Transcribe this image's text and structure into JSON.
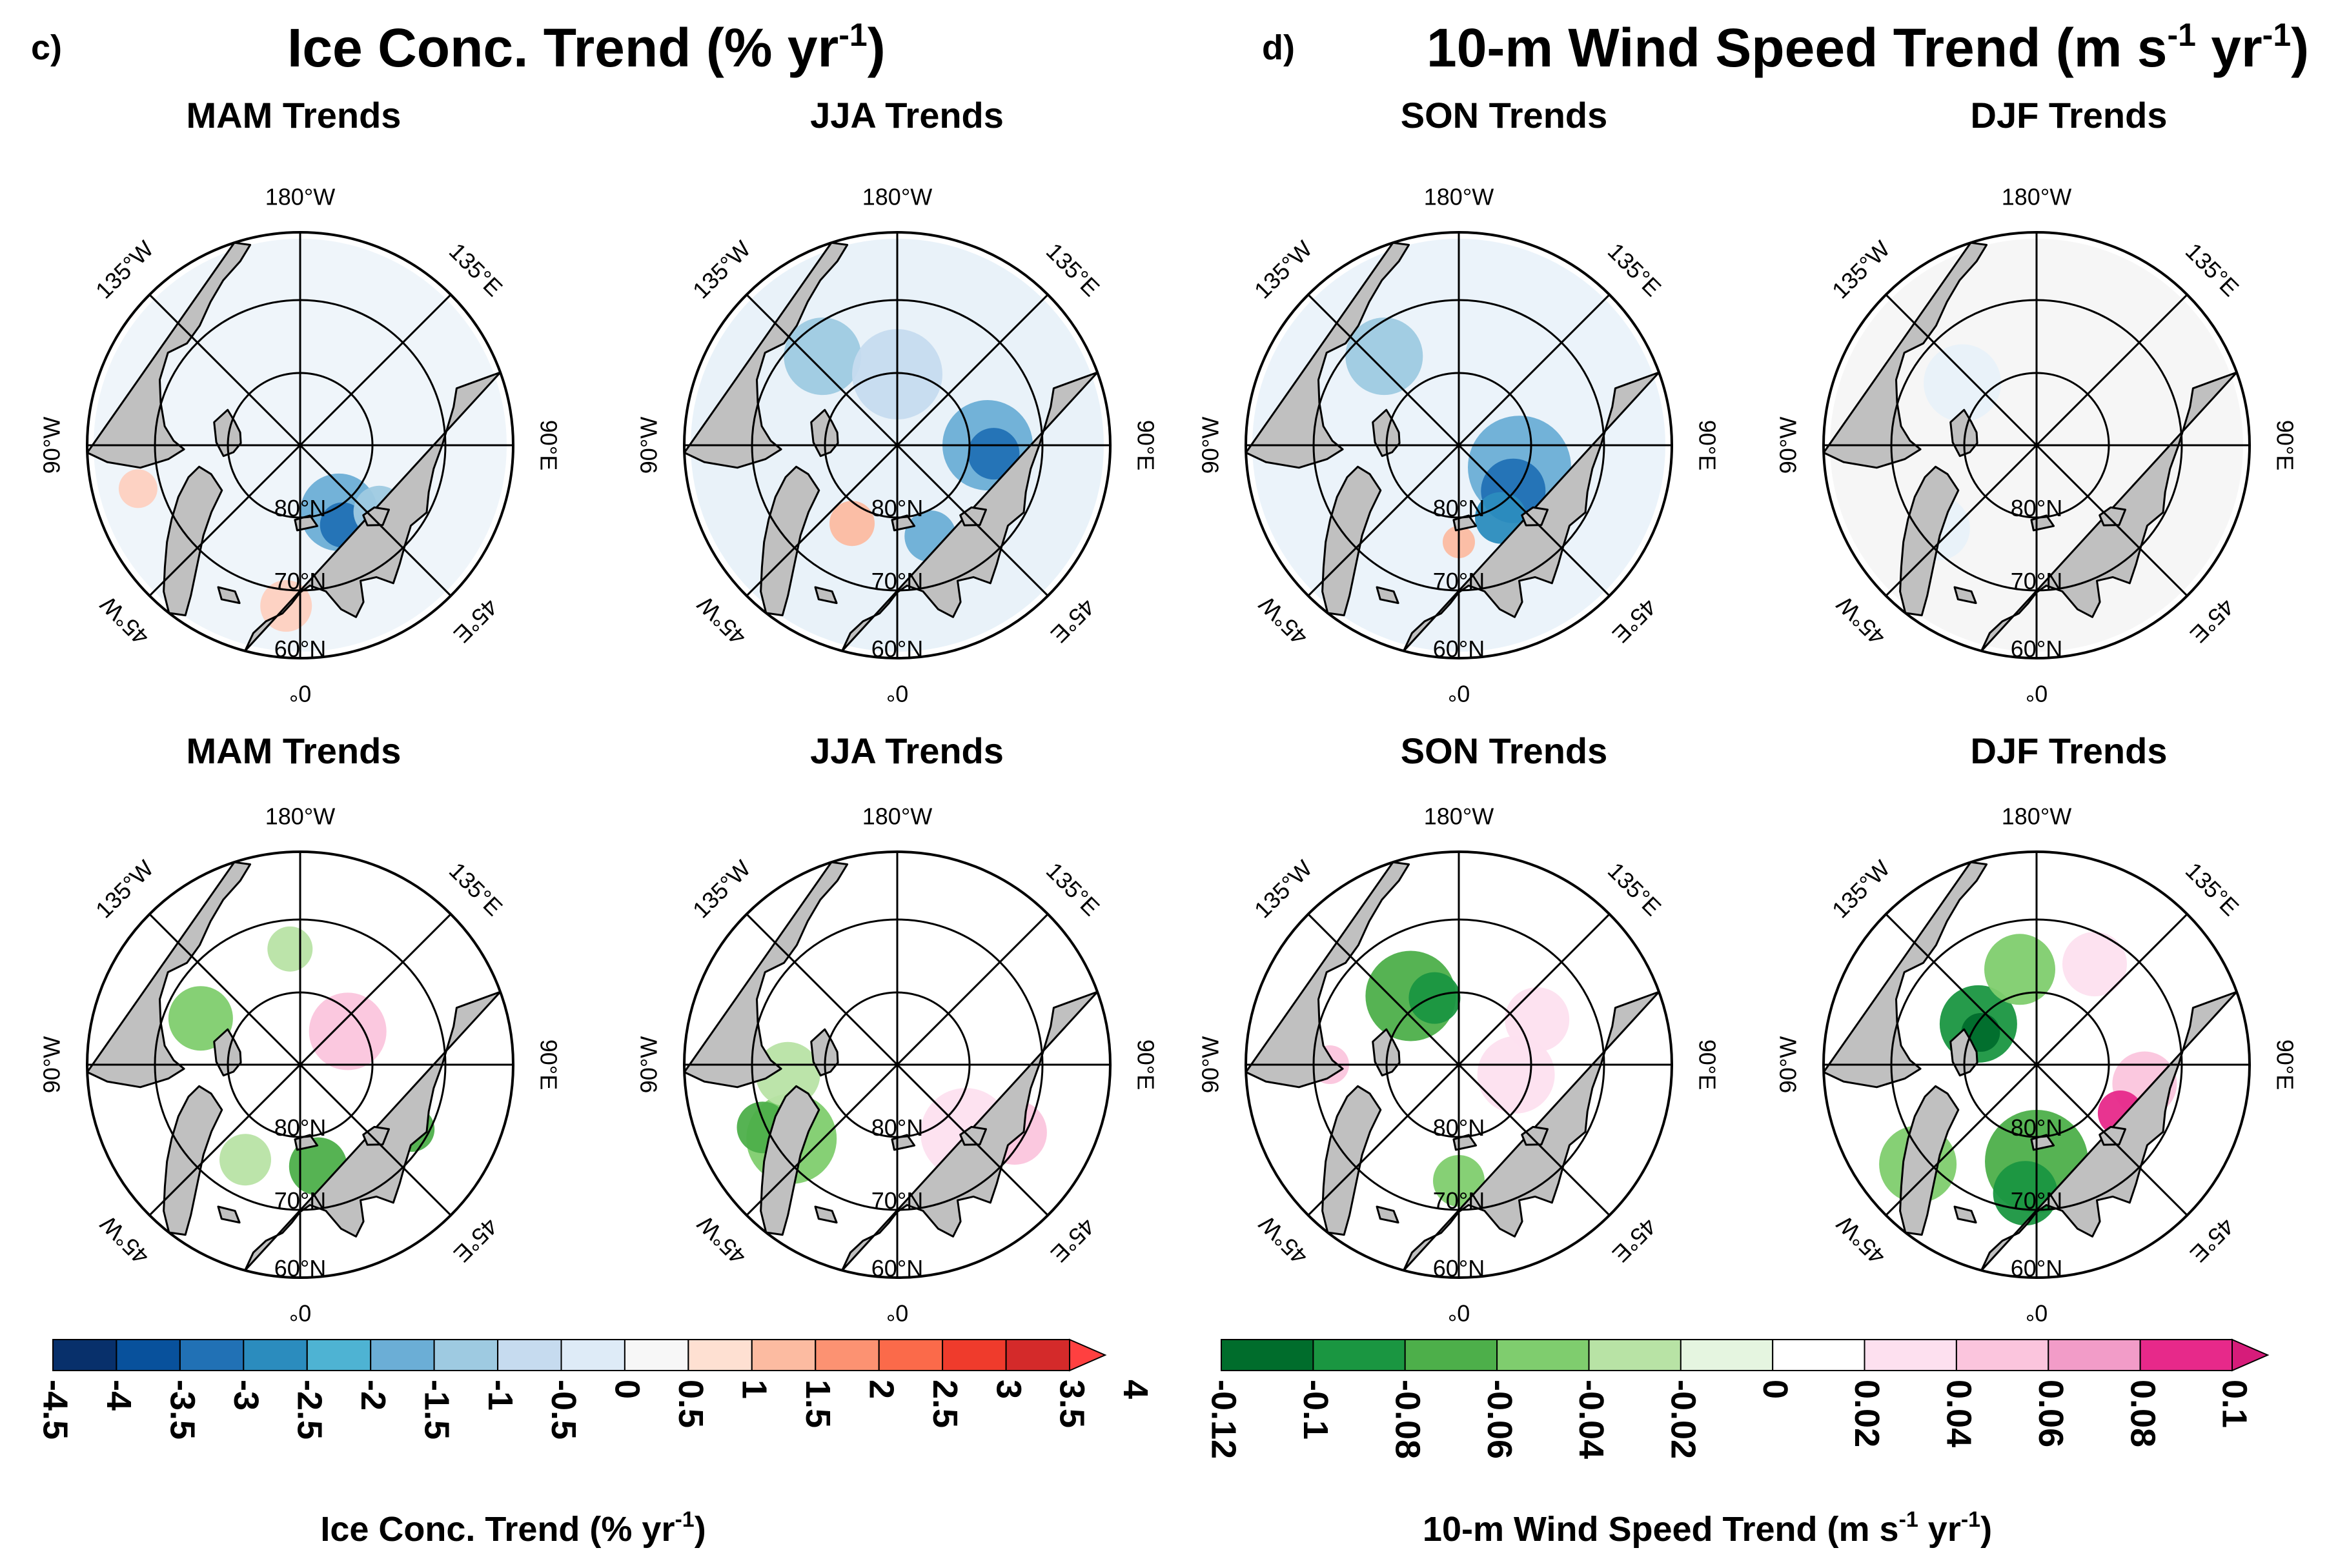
{
  "panels": {
    "c": {
      "letter": "c)",
      "title": "Ice Conc. Trend (% yr",
      "title_sup": "-1",
      "title_close": ")"
    },
    "d": {
      "letter": "d)",
      "title": "10-m Wind Speed Trend (m s",
      "title_sup1": "-1",
      "title_mid": " yr",
      "title_sup2": "-1",
      "title_close": ")"
    }
  },
  "map_labels": {
    "lon_top": "180°W",
    "lon_nw": "135°W",
    "lon_ne": "135°E",
    "lon_w": "90°W",
    "lon_e": "90°E",
    "lon_sw": "45°W",
    "lon_se": "45°E",
    "lon_bottom": "0°",
    "lat_80": "80°N",
    "lat_70": "70°N",
    "lat_60": "60°N"
  },
  "chart_data": [
    {
      "type": "heatmap",
      "title": "Ice Conc. Trend (% yr-1)",
      "projection": "north polar stereographic",
      "panels": [
        "MAM Trends",
        "JJA Trends",
        "SON Trends",
        "DJF Trends"
      ],
      "colorbar": {
        "label": "Ice Conc. Trend (% yr",
        "label_sup": "-1",
        "label_close": ")",
        "ticks": [
          "-4.5",
          "-4",
          "-3.5",
          "-3",
          "-2.5",
          "-2",
          "-1.5",
          "-1",
          "-0.5",
          "0",
          "0.5",
          "1",
          "1.5",
          "2",
          "2.5",
          "3",
          "3.5",
          "4"
        ],
        "colors": [
          "#08306b",
          "#08519c",
          "#2171b5",
          "#2b8cbe",
          "#4eb3d3",
          "#6baed6",
          "#9ecae1",
          "#c6dbef",
          "#deebf7",
          "#f7f7f7",
          "#fee0d2",
          "#fcbba1",
          "#fc9272",
          "#fb6a4a",
          "#ef3b2c",
          "#d42a2a",
          "#ff4040"
        ],
        "extend": "max",
        "range": [
          -4.5,
          4
        ]
      }
    },
    {
      "type": "heatmap",
      "title": "10-m Wind Speed Trend (m s-1 yr-1)",
      "projection": "north polar stereographic",
      "panels": [
        "MAM Trends",
        "JJA Trends",
        "SON Trends",
        "DJF Trends"
      ],
      "colorbar": {
        "label": "10-m Wind Speed Trend (m s",
        "label_sup1": "-1",
        "label_mid": " yr",
        "label_sup2": "-1",
        "label_close": ")",
        "ticks": [
          "-0.12",
          "-0.1",
          "-0.08",
          "-0.06",
          "-0.04",
          "-0.02",
          "0",
          "0.02",
          "0.04",
          "0.06",
          "0.08",
          "0.1"
        ],
        "colors": [
          "#006d2c",
          "#1a9641",
          "#4daf4a",
          "#7fcd6e",
          "#b8e3a5",
          "#e5f5e0",
          "#ffffff",
          "#fde0ef",
          "#fbc5dd",
          "#f29cc8",
          "#e7298a",
          "#d61c7a"
        ],
        "extend": "max",
        "range": [
          -0.12,
          0.1
        ]
      }
    }
  ],
  "colors": {
    "land": "#c0c0c0",
    "ocean": "#ffffff",
    "line": "#000000"
  }
}
